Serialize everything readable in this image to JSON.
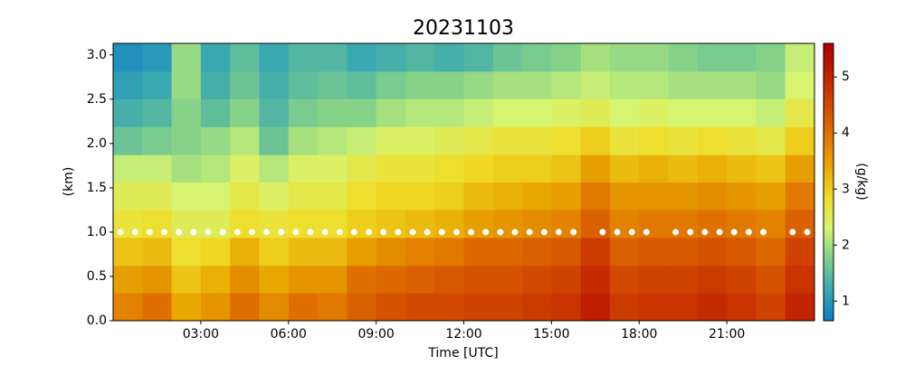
{
  "chart_data": {
    "type": "heatmap",
    "title": "20231103",
    "x_label": "Time [UTC]",
    "y_label": "(km)",
    "xlim": [
      0,
      24
    ],
    "ylim": [
      0,
      3.13
    ],
    "xticks": [
      {
        "value": 3,
        "label": "03:00"
      },
      {
        "value": 6,
        "label": "06:00"
      },
      {
        "value": 9,
        "label": "09:00"
      },
      {
        "value": 12,
        "label": "12:00"
      },
      {
        "value": 15,
        "label": "15:00"
      },
      {
        "value": 18,
        "label": "18:00"
      },
      {
        "value": 21,
        "label": "21:00"
      }
    ],
    "yticks": [
      {
        "value": 0,
        "label": "0.0"
      },
      0.5,
      {
        "value": 1,
        "label": "1.0"
      },
      1.5,
      {
        "value": 2,
        "label": "2.0"
      },
      2.5,
      {
        "value": 3,
        "label": "3.0"
      }
    ],
    "x": [
      0.5,
      1.5,
      2.5,
      3.5,
      4.5,
      5.5,
      6.5,
      7.5,
      8.5,
      9.5,
      10.5,
      11.5,
      12.5,
      13.5,
      14.5,
      15.5,
      16.5,
      17.5,
      18.5,
      19.5,
      20.5,
      21.5,
      22.5,
      23.5
    ],
    "y": [
      0.16,
      0.47,
      0.78,
      1.1,
      1.41,
      1.72,
      2.03,
      2.35,
      2.66,
      2.97
    ],
    "z": [
      [
        3.8,
        4.0,
        3.4,
        3.6,
        4.0,
        3.7,
        4.0,
        3.9,
        4.2,
        4.4,
        4.5,
        4.5,
        4.6,
        4.6,
        4.7,
        4.8,
        5.1,
        4.7,
        4.8,
        4.8,
        4.9,
        4.8,
        4.6,
        5.0
      ],
      [
        3.5,
        3.6,
        3.1,
        3.3,
        3.7,
        3.4,
        3.6,
        3.6,
        4.0,
        4.1,
        4.2,
        4.3,
        4.4,
        4.4,
        4.5,
        4.6,
        4.9,
        4.5,
        4.6,
        4.6,
        4.7,
        4.6,
        4.4,
        4.8
      ],
      [
        3.1,
        3.2,
        2.8,
        2.9,
        3.3,
        3.0,
        3.2,
        3.2,
        3.5,
        3.7,
        3.8,
        3.9,
        4.1,
        4.1,
        4.2,
        4.3,
        4.7,
        4.2,
        4.3,
        4.3,
        4.4,
        4.3,
        4.1,
        4.6
      ],
      [
        2.7,
        2.8,
        2.5,
        2.5,
        2.8,
        2.7,
        2.8,
        2.8,
        3.0,
        3.1,
        3.2,
        3.3,
        3.5,
        3.6,
        3.7,
        3.8,
        4.2,
        3.8,
        3.9,
        3.9,
        4.0,
        3.9,
        3.8,
        4.2
      ],
      [
        2.5,
        2.5,
        2.3,
        2.3,
        2.6,
        2.4,
        2.6,
        2.6,
        2.8,
        2.9,
        2.9,
        3.0,
        3.2,
        3.3,
        3.4,
        3.5,
        3.9,
        3.6,
        3.6,
        3.6,
        3.7,
        3.6,
        3.5,
        3.9
      ],
      [
        2.2,
        2.2,
        2.0,
        2.1,
        2.4,
        2.1,
        2.4,
        2.4,
        2.6,
        2.7,
        2.7,
        2.8,
        2.9,
        3.0,
        3.0,
        3.1,
        3.5,
        3.2,
        3.3,
        3.2,
        3.3,
        3.2,
        3.1,
        3.5
      ],
      [
        1.6,
        1.7,
        1.8,
        1.9,
        2.1,
        1.6,
        2.0,
        2.1,
        2.2,
        2.4,
        2.4,
        2.5,
        2.6,
        2.7,
        2.7,
        2.8,
        3.0,
        2.7,
        2.8,
        2.7,
        2.8,
        2.7,
        2.6,
        3.0
      ],
      [
        1.3,
        1.4,
        1.8,
        1.5,
        1.8,
        1.4,
        1.7,
        1.8,
        1.8,
        2.0,
        2.1,
        2.1,
        2.2,
        2.3,
        2.3,
        2.4,
        2.5,
        2.3,
        2.4,
        2.3,
        2.3,
        2.3,
        2.2,
        2.6
      ],
      [
        1.1,
        1.2,
        1.9,
        1.3,
        1.6,
        1.3,
        1.5,
        1.6,
        1.5,
        1.7,
        1.8,
        1.8,
        1.9,
        2.0,
        2.0,
        2.1,
        2.2,
        2.1,
        2.1,
        2.0,
        2.0,
        2.0,
        1.9,
        2.3
      ],
      [
        0.9,
        1.0,
        1.9,
        1.2,
        1.5,
        1.2,
        1.4,
        1.4,
        1.2,
        1.3,
        1.4,
        1.3,
        1.4,
        1.6,
        1.7,
        1.8,
        2.0,
        1.9,
        1.9,
        1.8,
        1.7,
        1.7,
        1.8,
        2.2
      ]
    ],
    "colorbar": {
      "label": "(g/kg)",
      "lim": [
        0.65,
        5.6
      ],
      "ticks": [
        1,
        2,
        3,
        4,
        5
      ],
      "colors": [
        "#0a7dc8",
        "#3aa8b0",
        "#7fcf8c",
        "#d6f470",
        "#f0dc28",
        "#e8a800",
        "#e07400",
        "#d24a00",
        "#c02000",
        "#b00000"
      ]
    },
    "markers": {
      "color": "#ffffff",
      "x": [
        0.25,
        0.75,
        1.25,
        1.75,
        2.25,
        2.75,
        3.25,
        3.75,
        4.25,
        4.75,
        5.25,
        5.75,
        6.25,
        6.75,
        7.25,
        7.75,
        8.25,
        8.75,
        9.25,
        9.75,
        10.25,
        10.75,
        11.25,
        11.75,
        12.25,
        12.75,
        13.25,
        13.75,
        14.25,
        14.75,
        15.25,
        15.75,
        16.75,
        17.25,
        17.75,
        18.25,
        19.25,
        19.75,
        20.25,
        20.75,
        21.25,
        21.75,
        22.25,
        23.25,
        23.75
      ],
      "y": [
        1,
        1,
        1,
        1,
        1,
        1,
        1,
        1,
        1,
        1,
        1,
        1,
        1,
        1,
        1,
        1,
        1,
        1,
        1,
        1,
        1,
        1,
        1,
        1,
        1,
        1,
        1,
        1,
        1,
        1,
        1,
        1,
        1,
        1,
        1,
        1,
        1,
        1,
        1,
        1,
        1,
        1,
        1,
        1,
        1
      ]
    }
  }
}
